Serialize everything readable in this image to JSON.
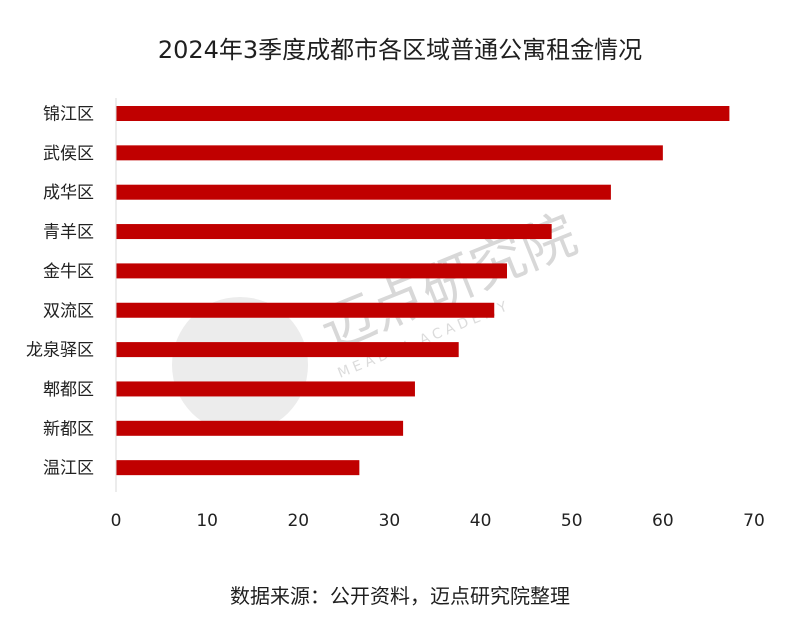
{
  "chart_data": {
    "type": "bar",
    "orientation": "horizontal",
    "title": "2024年3季度成都市各区域普通公寓租金情况",
    "categories": [
      "锦江区",
      "武侯区",
      "成华区",
      "青羊区",
      "金牛区",
      "双流区",
      "龙泉驿区",
      "郫都区",
      "新都区",
      "温江区"
    ],
    "values": [
      67.3,
      60.0,
      54.3,
      47.8,
      42.9,
      41.5,
      37.6,
      32.8,
      31.5,
      26.7
    ],
    "xlim": [
      0,
      70
    ],
    "xticks": [
      0,
      10,
      20,
      30,
      40,
      50,
      60,
      70
    ],
    "xlabel": "",
    "ylabel": "",
    "grid": false,
    "bar_color": "#c00000"
  },
  "source": "数据来源：公开资料，迈点研究院整理",
  "watermark": {
    "main": "迈点研究院",
    "sub": "MEADIN ACADEMY"
  }
}
